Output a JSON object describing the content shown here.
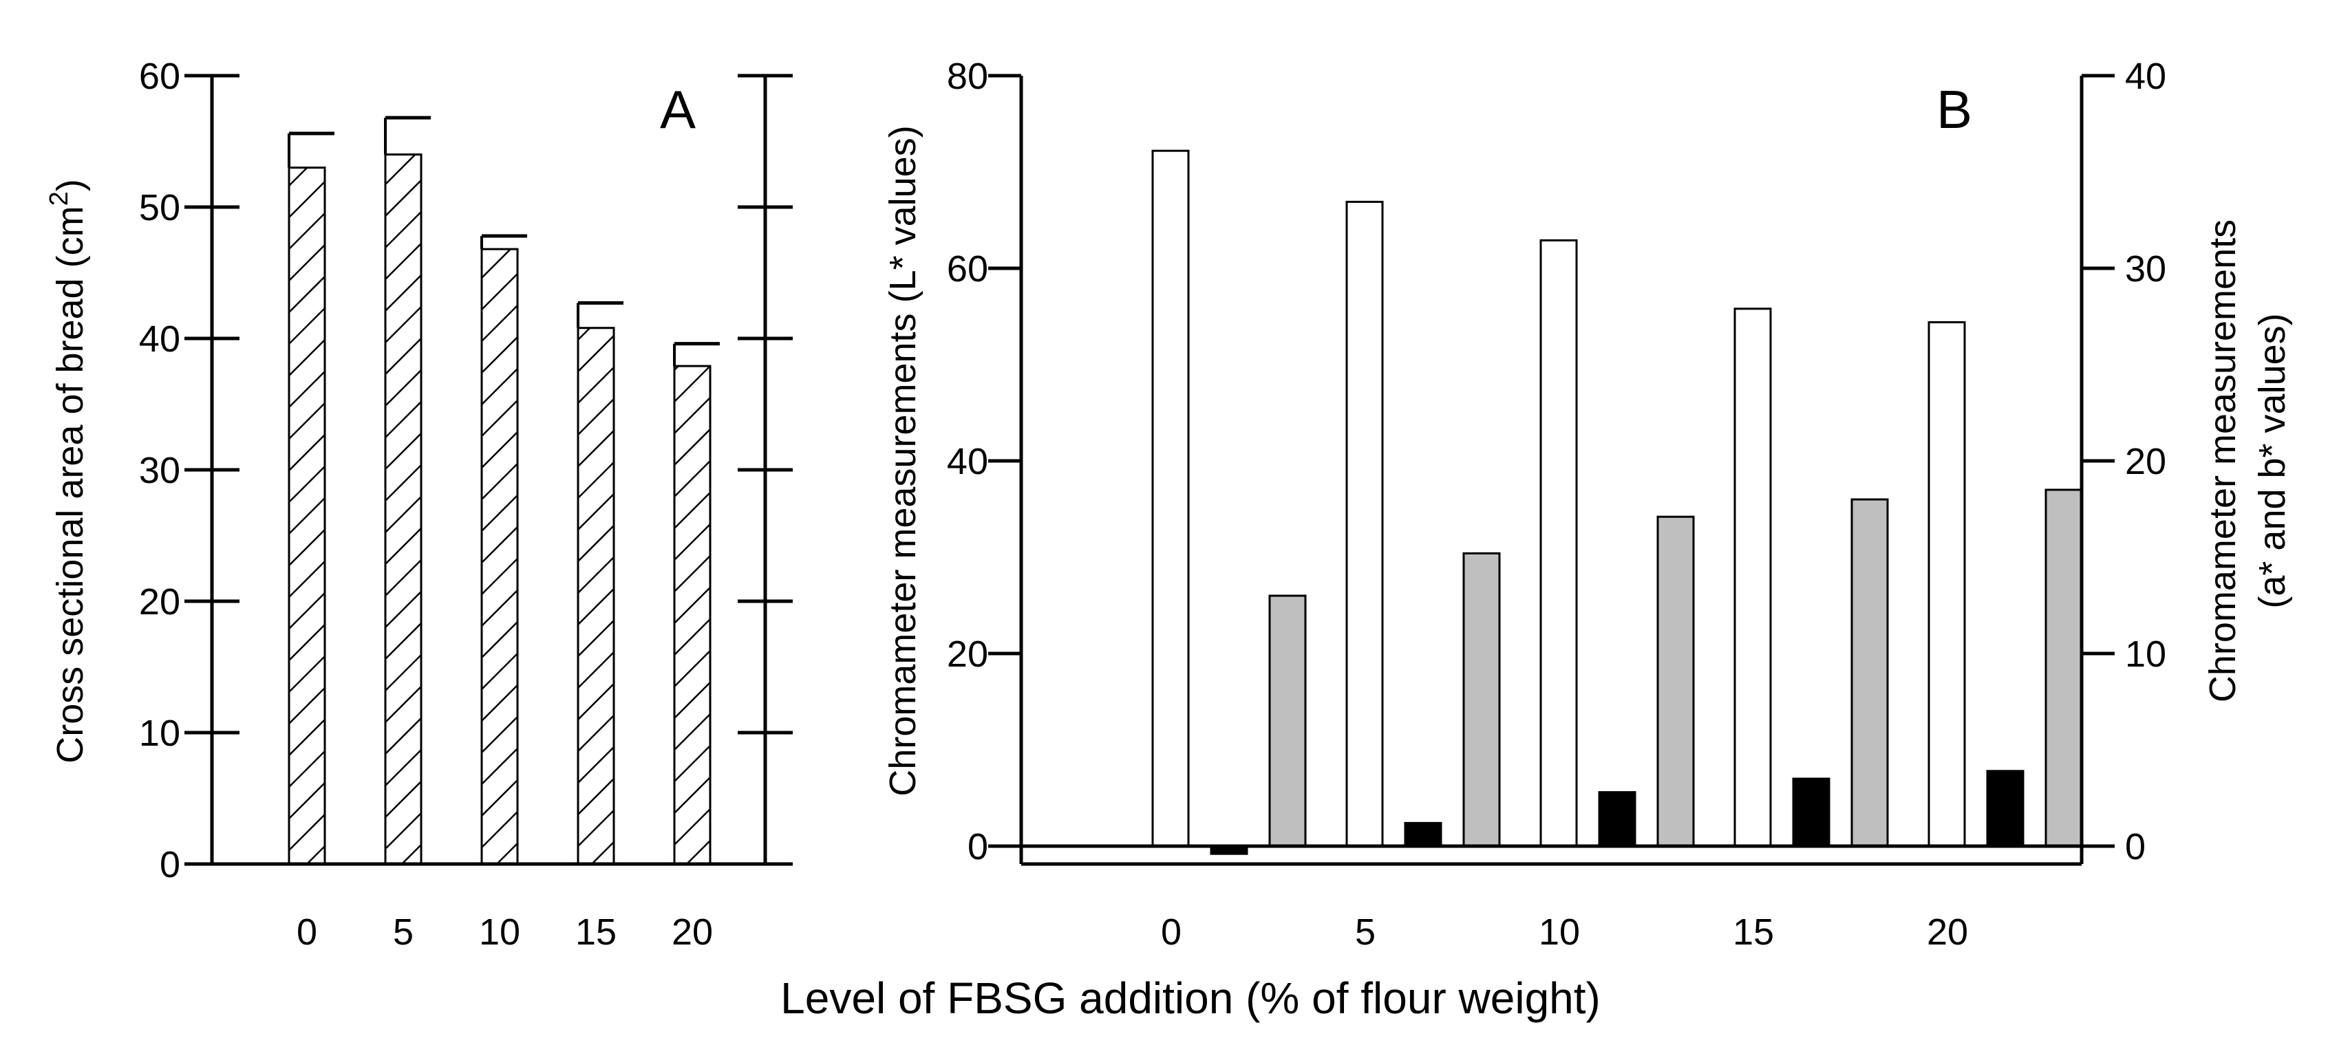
{
  "figure": {
    "xlabel": "Level of FBSG addition (% of flour weight)"
  },
  "chart_data": [
    {
      "panel": "A",
      "type": "bar",
      "categories": [
        "0",
        "5",
        "10",
        "15",
        "20"
      ],
      "values": [
        53,
        54,
        46.8,
        40.8,
        37.9
      ],
      "errors": [
        2.6,
        2.8,
        1.0,
        1.9,
        1.7
      ],
      "ylabel": "Cross sectional area of bread (cm²)",
      "ylabel_main": "Cross sectional area of bread (cm",
      "ylabel_sup": "2",
      "ylabel_tail": ")",
      "ylim": [
        0,
        60
      ],
      "yticks": [
        "0",
        "10",
        "20",
        "30",
        "40",
        "50",
        "60"
      ],
      "pattern": "hatched"
    },
    {
      "panel": "B",
      "type": "bar",
      "categories": [
        "0",
        "5",
        "10",
        "15",
        "20"
      ],
      "series": [
        {
          "name": "L* values",
          "axis": "left",
          "fill": "#ffffff",
          "values": [
            72.2,
            66.9,
            62.9,
            55.8,
            54.4
          ]
        },
        {
          "name": "a* values",
          "axis": "right",
          "fill": "#000000",
          "values": [
            -0.4,
            1.2,
            2.8,
            3.5,
            3.9
          ]
        },
        {
          "name": "b* values",
          "axis": "right",
          "fill": "#bfbfbf",
          "values": [
            13.0,
            15.2,
            17.1,
            18.0,
            18.5
          ]
        }
      ],
      "ylabel_left": "Chromameter measurements (L* values)",
      "ylabel_right_1": "Chromameter measurements",
      "ylabel_right_2": "(a* and b* values)",
      "ylim_left": [
        0,
        80
      ],
      "ylim_right": [
        0,
        40
      ],
      "yticks_left": [
        "0",
        "20",
        "40",
        "60",
        "80"
      ],
      "yticks_right": [
        "0",
        "10",
        "20",
        "30",
        "40"
      ]
    }
  ]
}
